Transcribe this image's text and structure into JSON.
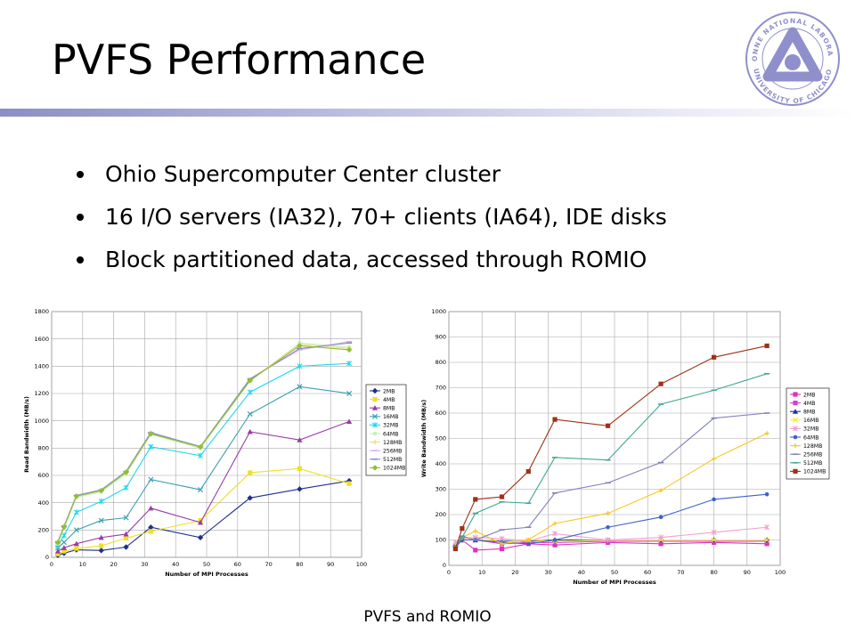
{
  "slide": {
    "title": "PVFS Performance",
    "bullets": [
      "Ohio Supercomputer Center cluster",
      "16 I/O servers (IA32), 70+ clients (IA64), IDE disks",
      "Block partitioned data, accessed through ROMIO"
    ],
    "footer": "PVFS and ROMIO",
    "logo": {
      "icon": "argonne-atom-logo",
      "text_top": "ARGONNE NATIONAL LABORATORY",
      "text_bottom": "UNIVERSITY OF CHICAGO",
      "color": "#8f8fcc"
    },
    "accent_color": "#8a8fc4"
  },
  "chart_data": [
    {
      "type": "line",
      "title": "",
      "xlabel": "Number of MPI Processes",
      "ylabel": "Read Bandwidth (MB/s)",
      "xlim": [
        0,
        100
      ],
      "ylim": [
        0,
        1800
      ],
      "xticks": [
        0,
        10,
        20,
        30,
        40,
        50,
        60,
        70,
        80,
        90,
        100
      ],
      "yticks": [
        0,
        200,
        400,
        600,
        800,
        1000,
        1200,
        1400,
        1600,
        1800
      ],
      "grid": true,
      "legend": "right",
      "x": [
        2,
        4,
        8,
        16,
        24,
        32,
        48,
        64,
        80,
        96
      ],
      "series": [
        {
          "name": "2MB",
          "color": "#1f2f8f",
          "marker": "diamond",
          "values": [
            15,
            30,
            55,
            50,
            75,
            220,
            145,
            435,
            500,
            560
          ]
        },
        {
          "name": "4MB",
          "color": "#f0e020",
          "marker": "square",
          "values": [
            25,
            45,
            65,
            85,
            140,
            190,
            270,
            620,
            650,
            540
          ]
        },
        {
          "name": "8MB",
          "color": "#9a3aa8",
          "marker": "triangle",
          "values": [
            45,
            70,
            100,
            145,
            170,
            360,
            255,
            920,
            860,
            995
          ]
        },
        {
          "name": "16MB",
          "color": "#3aa0b0",
          "marker": "x",
          "values": [
            70,
            110,
            200,
            270,
            290,
            570,
            495,
            1050,
            1250,
            1200
          ]
        },
        {
          "name": "32MB",
          "color": "#20d8f0",
          "marker": "star",
          "values": [
            85,
            160,
            330,
            410,
            510,
            810,
            745,
            1210,
            1400,
            1420
          ]
        },
        {
          "name": "64MB",
          "color": "#c8f0b8",
          "marker": "circle",
          "values": [
            100,
            215,
            440,
            480,
            610,
            900,
            800,
            1290,
            1570,
            1540
          ]
        },
        {
          "name": "128MB",
          "color": "#f0d890",
          "marker": "plus",
          "values": [
            110,
            225,
            450,
            490,
            625,
            910,
            805,
            1300,
            1560,
            1530
          ]
        },
        {
          "name": "256MB",
          "color": "#e0a8f0",
          "marker": "dash",
          "values": [
            115,
            230,
            455,
            495,
            630,
            915,
            810,
            1310,
            1520,
            1580
          ]
        },
        {
          "name": "512MB",
          "color": "#8090c8",
          "marker": "dash",
          "values": [
            112,
            228,
            452,
            493,
            628,
            912,
            812,
            1305,
            1530,
            1570
          ]
        },
        {
          "name": "1024MB",
          "color": "#90c030",
          "marker": "diamond",
          "values": [
            108,
            222,
            448,
            488,
            622,
            905,
            808,
            1295,
            1550,
            1520
          ]
        }
      ]
    },
    {
      "type": "line",
      "title": "",
      "xlabel": "Number of MPI Processes",
      "ylabel": "Write Bandwidth (MB/s)",
      "xlim": [
        0,
        100
      ],
      "ylim": [
        0,
        1000
      ],
      "xticks": [
        0,
        10,
        20,
        30,
        40,
        50,
        60,
        70,
        80,
        90,
        100
      ],
      "yticks": [
        0,
        100,
        200,
        300,
        400,
        500,
        600,
        700,
        800,
        900,
        1000
      ],
      "grid": true,
      "legend": "right",
      "x": [
        2,
        4,
        8,
        16,
        24,
        32,
        48,
        64,
        80,
        96
      ],
      "series": [
        {
          "name": "2MB",
          "color": "#e030c0",
          "marker": "square",
          "values": [
            70,
            100,
            60,
            65,
            85,
            80,
            90,
            85,
            90,
            85
          ]
        },
        {
          "name": "4MB",
          "color": "#d040d0",
          "marker": "square",
          "values": [
            80,
            100,
            100,
            85,
            90,
            90,
            95,
            95,
            95,
            95
          ]
        },
        {
          "name": "8MB",
          "color": "#2030a0",
          "marker": "triangle",
          "values": [
            80,
            100,
            100,
            95,
            95,
            100,
            100,
            100,
            100,
            100
          ]
        },
        {
          "name": "16MB",
          "color": "#f0f030",
          "marker": "x",
          "values": [
            80,
            100,
            105,
            90,
            100,
            95,
            100,
            100,
            100,
            100
          ]
        },
        {
          "name": "32MB",
          "color": "#f0a0d0",
          "marker": "star",
          "values": [
            90,
            105,
            110,
            105,
            95,
            125,
            100,
            110,
            130,
            150
          ]
        },
        {
          "name": "64MB",
          "color": "#4060c8",
          "marker": "circle",
          "values": [
            75,
            100,
            100,
            90,
            85,
            100,
            150,
            190,
            260,
            280
          ]
        },
        {
          "name": "128MB",
          "color": "#f8c820",
          "marker": "plus",
          "values": [
            75,
            110,
            135,
            85,
            100,
            165,
            205,
            295,
            420,
            520
          ]
        },
        {
          "name": "256MB",
          "color": "#8080c0",
          "marker": "dash",
          "values": [
            75,
            115,
            100,
            140,
            150,
            285,
            325,
            405,
            580,
            600
          ]
        },
        {
          "name": "512MB",
          "color": "#40a890",
          "marker": "dash",
          "values": [
            75,
            110,
            205,
            250,
            245,
            425,
            415,
            635,
            690,
            755
          ]
        },
        {
          "name": "1024MB",
          "color": "#a03018",
          "marker": "square",
          "values": [
            65,
            145,
            260,
            270,
            370,
            575,
            550,
            715,
            820,
            865
          ]
        }
      ]
    }
  ]
}
